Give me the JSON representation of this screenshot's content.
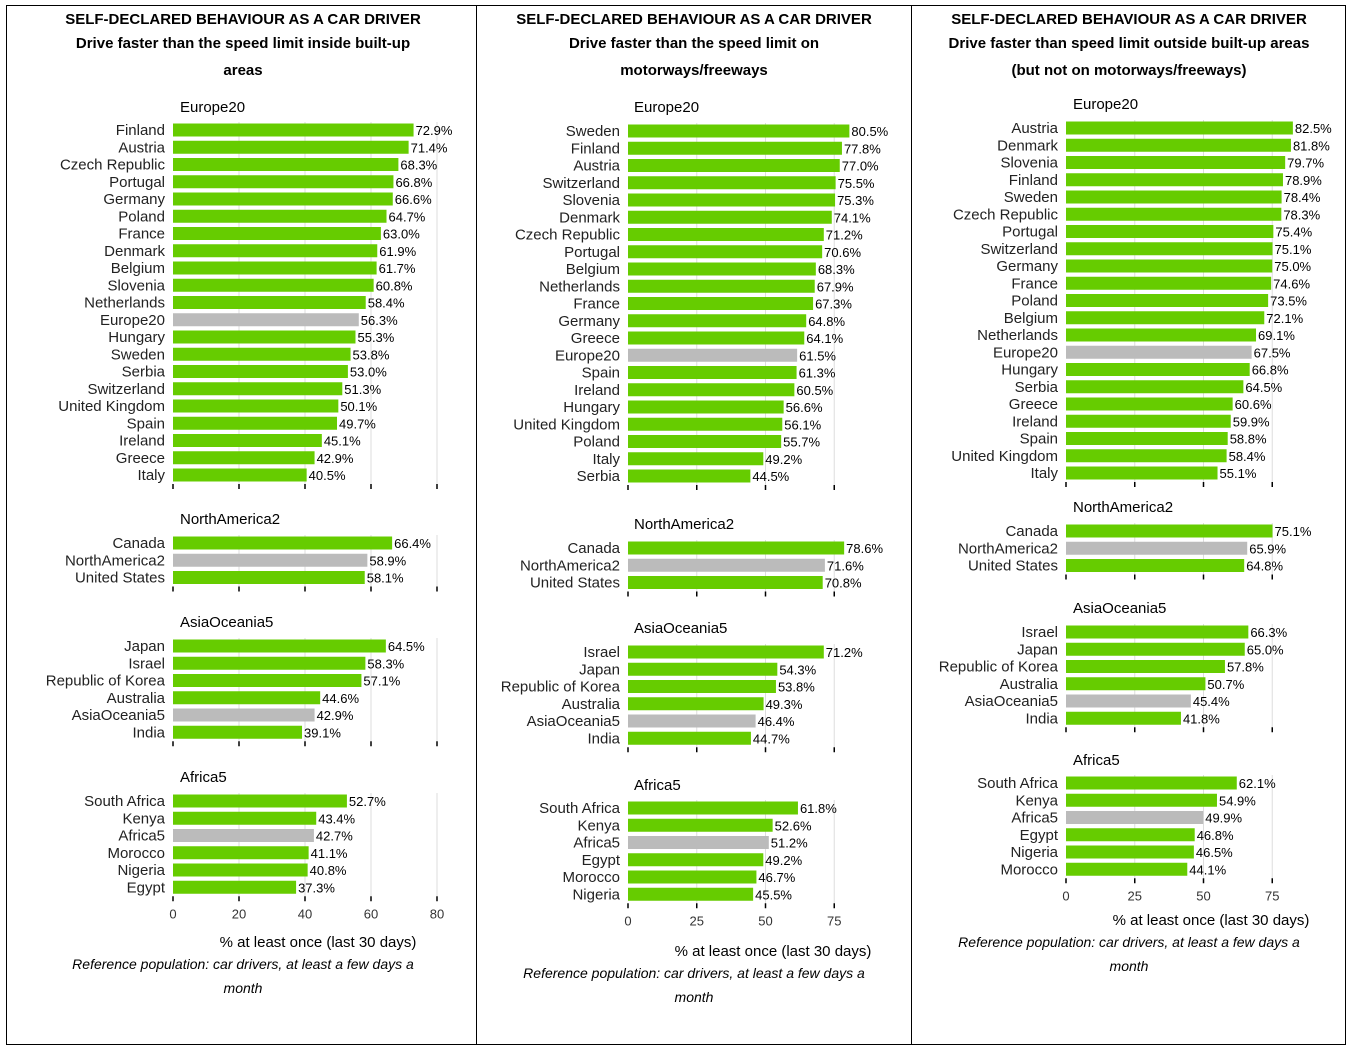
{
  "colors": {
    "bar": "#66cc00",
    "aggregate_bar": "#bbbbbb",
    "axis": "#000000",
    "grid": "#dddddd"
  },
  "panels": [
    {
      "header_line1": "SELF-DECLARED BEHAVIOUR AS A CAR DRIVER",
      "header_line2": "Drive faster than the speed limit inside built-up",
      "header_line3": "areas",
      "x_axis_label": "% at least once (last 30 days)",
      "footnote_line1": "Reference population: car drivers, at least a few days a",
      "footnote_line2": "month"
    },
    {
      "header_line1": "SELF-DECLARED BEHAVIOUR AS A CAR DRIVER",
      "header_line2": "Drive faster than the speed limit on",
      "header_line3": "motorways/freeways",
      "x_axis_label": "% at least once (last 30 days)",
      "footnote_line1": "Reference population: car drivers, at least a few days a",
      "footnote_line2": "month"
    },
    {
      "header_line1": "SELF-DECLARED BEHAVIOUR AS A CAR DRIVER",
      "header_line2": "Drive faster than speed limit outside built-up areas",
      "header_line3": "(but not on motorways/freeways)",
      "x_axis_label": "% at least once (last 30 days)",
      "footnote_line1": "Reference population: car drivers, at least a few days a",
      "footnote_line2": "month"
    }
  ],
  "chart_data": [
    {
      "type": "bar",
      "orientation": "horizontal",
      "title": "Drive faster than the speed limit inside built-up areas",
      "xlabel": "% at least once (last 30 days)",
      "xlim": [
        0,
        80
      ],
      "xticks": [
        "0",
        "20",
        "40",
        "60",
        "80"
      ],
      "groups": [
        {
          "name": "Europe20",
          "aggregate": "Europe20",
          "categories": [
            "Finland",
            "Austria",
            "Czech Republic",
            "Portugal",
            "Germany",
            "Poland",
            "France",
            "Denmark",
            "Belgium",
            "Slovenia",
            "Netherlands",
            "Europe20",
            "Hungary",
            "Sweden",
            "Serbia",
            "Switzerland",
            "United Kingdom",
            "Spain",
            "Ireland",
            "Greece",
            "Italy"
          ],
          "values": [
            72.9,
            71.4,
            68.3,
            66.8,
            66.6,
            64.7,
            63.0,
            61.9,
            61.7,
            60.8,
            58.4,
            56.3,
            55.3,
            53.8,
            53.0,
            51.3,
            50.1,
            49.7,
            45.1,
            42.9,
            40.5
          ],
          "labels": [
            "72.9%",
            "71.4%",
            "68.3%",
            "66.8%",
            "66.6%",
            "64.7%",
            "63.0%",
            "61.9%",
            "61.7%",
            "60.8%",
            "58.4%",
            "56.3%",
            "55.3%",
            "53.8%",
            "53.0%",
            "51.3%",
            "50.1%",
            "49.7%",
            "45.1%",
            "42.9%",
            "40.5%"
          ]
        },
        {
          "name": "NorthAmerica2",
          "aggregate": "NorthAmerica2",
          "categories": [
            "Canada",
            "NorthAmerica2",
            "United States"
          ],
          "values": [
            66.4,
            58.9,
            58.1
          ],
          "labels": [
            "66.4%",
            "58.9%",
            "58.1%"
          ]
        },
        {
          "name": "AsiaOceania5",
          "aggregate": "AsiaOceania5",
          "categories": [
            "Japan",
            "Israel",
            "Republic of Korea",
            "Australia",
            "AsiaOceania5",
            "India"
          ],
          "values": [
            64.5,
            58.3,
            57.1,
            44.6,
            42.9,
            39.1
          ],
          "labels": [
            "64.5%",
            "58.3%",
            "57.1%",
            "44.6%",
            "42.9%",
            "39.1%"
          ]
        },
        {
          "name": "Africa5",
          "aggregate": "Africa5",
          "categories": [
            "South Africa",
            "Kenya",
            "Africa5",
            "Morocco",
            "Nigeria",
            "Egypt"
          ],
          "values": [
            52.7,
            43.4,
            42.7,
            41.1,
            40.8,
            37.3
          ],
          "labels": [
            "52.7%",
            "43.4%",
            "42.7%",
            "41.1%",
            "40.8%",
            "37.3%"
          ]
        }
      ]
    },
    {
      "type": "bar",
      "orientation": "horizontal",
      "title": "Drive faster than the speed limit on motorways/freeways",
      "xlabel": "% at least once (last 30 days)",
      "xlim": [
        0,
        80
      ],
      "xticks": [
        "0",
        "25",
        "50",
        "75"
      ],
      "groups": [
        {
          "name": "Europe20",
          "aggregate": "Europe20",
          "categories": [
            "Sweden",
            "Finland",
            "Austria",
            "Switzerland",
            "Slovenia",
            "Denmark",
            "Czech Republic",
            "Portugal",
            "Belgium",
            "Netherlands",
            "France",
            "Germany",
            "Greece",
            "Europe20",
            "Spain",
            "Ireland",
            "Hungary",
            "United Kingdom",
            "Poland",
            "Italy",
            "Serbia"
          ],
          "values": [
            80.5,
            77.8,
            77.0,
            75.5,
            75.3,
            74.1,
            71.2,
            70.6,
            68.3,
            67.9,
            67.3,
            64.8,
            64.1,
            61.5,
            61.3,
            60.5,
            56.6,
            56.1,
            55.7,
            49.2,
            44.5
          ],
          "labels": [
            "80.5%",
            "77.8%",
            "77.0%",
            "75.5%",
            "75.3%",
            "74.1%",
            "71.2%",
            "70.6%",
            "68.3%",
            "67.9%",
            "67.3%",
            "64.8%",
            "64.1%",
            "61.5%",
            "61.3%",
            "60.5%",
            "56.6%",
            "56.1%",
            "55.7%",
            "49.2%",
            "44.5%"
          ]
        },
        {
          "name": "NorthAmerica2",
          "aggregate": "NorthAmerica2",
          "categories": [
            "Canada",
            "NorthAmerica2",
            "United States"
          ],
          "values": [
            78.6,
            71.6,
            70.8
          ],
          "labels": [
            "78.6%",
            "71.6%",
            "70.8%"
          ]
        },
        {
          "name": "AsiaOceania5",
          "aggregate": "AsiaOceania5",
          "categories": [
            "Israel",
            "Japan",
            "Republic of Korea",
            "Australia",
            "AsiaOceania5",
            "India"
          ],
          "values": [
            71.2,
            54.3,
            53.8,
            49.3,
            46.4,
            44.7
          ],
          "labels": [
            "71.2%",
            "54.3%",
            "53.8%",
            "49.3%",
            "46.4%",
            "44.7%"
          ]
        },
        {
          "name": "Africa5",
          "aggregate": "Africa5",
          "categories": [
            "South Africa",
            "Kenya",
            "Africa5",
            "Egypt",
            "Morocco",
            "Nigeria"
          ],
          "values": [
            61.8,
            52.6,
            51.2,
            49.2,
            46.7,
            45.5
          ],
          "labels": [
            "61.8%",
            "52.6%",
            "51.2%",
            "49.2%",
            "46.7%",
            "45.5%"
          ]
        }
      ]
    },
    {
      "type": "bar",
      "orientation": "horizontal",
      "title": "Drive faster than speed limit outside built-up areas (but not on motorways/freeways)",
      "xlabel": "% at least once (last 30 days)",
      "xlim": [
        0,
        82
      ],
      "xticks": [
        "0",
        "25",
        "50",
        "75"
      ],
      "groups": [
        {
          "name": "Europe20",
          "aggregate": "Europe20",
          "categories": [
            "Austria",
            "Denmark",
            "Slovenia",
            "Finland",
            "Sweden",
            "Czech Republic",
            "Portugal",
            "Switzerland",
            "Germany",
            "France",
            "Poland",
            "Belgium",
            "Netherlands",
            "Europe20",
            "Hungary",
            "Serbia",
            "Greece",
            "Ireland",
            "Spain",
            "United Kingdom",
            "Italy"
          ],
          "values": [
            82.5,
            81.8,
            79.7,
            78.9,
            78.4,
            78.3,
            75.4,
            75.1,
            75.0,
            74.6,
            73.5,
            72.1,
            69.1,
            67.5,
            66.8,
            64.5,
            60.6,
            59.9,
            58.8,
            58.4,
            55.1
          ],
          "labels": [
            "82.5%",
            "81.8%",
            "79.7%",
            "78.9%",
            "78.4%",
            "78.3%",
            "75.4%",
            "75.1%",
            "75.0%",
            "74.6%",
            "73.5%",
            "72.1%",
            "69.1%",
            "67.5%",
            "66.8%",
            "64.5%",
            "60.6%",
            "59.9%",
            "58.8%",
            "58.4%",
            "55.1%"
          ]
        },
        {
          "name": "NorthAmerica2",
          "aggregate": "NorthAmerica2",
          "categories": [
            "Canada",
            "NorthAmerica2",
            "United States"
          ],
          "values": [
            75.1,
            65.9,
            64.8
          ],
          "labels": [
            "75.1%",
            "65.9%",
            "64.8%"
          ]
        },
        {
          "name": "AsiaOceania5",
          "aggregate": "AsiaOceania5",
          "categories": [
            "Israel",
            "Japan",
            "Republic of Korea",
            "Australia",
            "AsiaOceania5",
            "India"
          ],
          "values": [
            66.3,
            65.0,
            57.8,
            50.7,
            45.4,
            41.8
          ],
          "labels": [
            "66.3%",
            "65.0%",
            "57.8%",
            "50.7%",
            "45.4%",
            "41.8%"
          ]
        },
        {
          "name": "Africa5",
          "aggregate": "Africa5",
          "categories": [
            "South Africa",
            "Kenya",
            "Africa5",
            "Egypt",
            "Nigeria",
            "Morocco"
          ],
          "values": [
            62.1,
            54.9,
            49.9,
            46.8,
            46.5,
            44.1
          ],
          "labels": [
            "62.1%",
            "54.9%",
            "49.9%",
            "46.8%",
            "46.5%",
            "44.1%"
          ]
        }
      ]
    }
  ]
}
